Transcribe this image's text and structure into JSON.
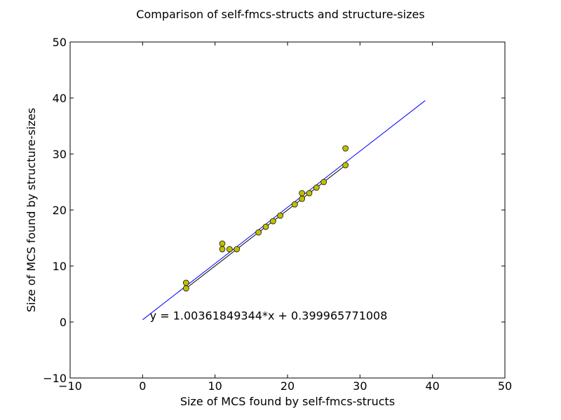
{
  "chart_data": {
    "type": "scatter",
    "title": "Comparison of self-fmcs-structs and structure-sizes",
    "xlabel": "Size of MCS found by self-fmcs-structs",
    "ylabel": "Size of MCS found by structure-sizes",
    "xlim": [
      -10,
      50
    ],
    "ylim": [
      -10,
      50
    ],
    "xticks": [
      -10,
      0,
      10,
      20,
      30,
      40,
      50
    ],
    "yticks": [
      -10,
      0,
      10,
      20,
      30,
      40,
      50
    ],
    "xtick_labels": [
      "−10",
      "0",
      "10",
      "20",
      "30",
      "40",
      "50"
    ],
    "ytick_labels": [
      "−10",
      "0",
      "10",
      "20",
      "30",
      "40",
      "50"
    ],
    "grid": false,
    "legend": "none",
    "points": [
      [
        6,
        6
      ],
      [
        6,
        7
      ],
      [
        11,
        13
      ],
      [
        11,
        14
      ],
      [
        12,
        13
      ],
      [
        13,
        13
      ],
      [
        16,
        16
      ],
      [
        17,
        17
      ],
      [
        18,
        18
      ],
      [
        19,
        19
      ],
      [
        21,
        21
      ],
      [
        22,
        22
      ],
      [
        22,
        23
      ],
      [
        23,
        23
      ],
      [
        24,
        24
      ],
      [
        25,
        25
      ],
      [
        28,
        28
      ],
      [
        28,
        31
      ]
    ],
    "identity_line": {
      "x": [
        6,
        28
      ]
    },
    "fit_line": {
      "slope": 1.00361849344,
      "intercept": 0.399965771008,
      "x_range": [
        0,
        39
      ]
    },
    "annotation": {
      "text": "y = 1.00361849344*x + 0.399965771008",
      "x": 1,
      "y": 1.2
    },
    "colors": {
      "marker_fill": "#bfbf00",
      "marker_edge": "#000000",
      "fit_line": "#0000ff",
      "identity_line": "#000000",
      "axes": "#000000"
    }
  }
}
